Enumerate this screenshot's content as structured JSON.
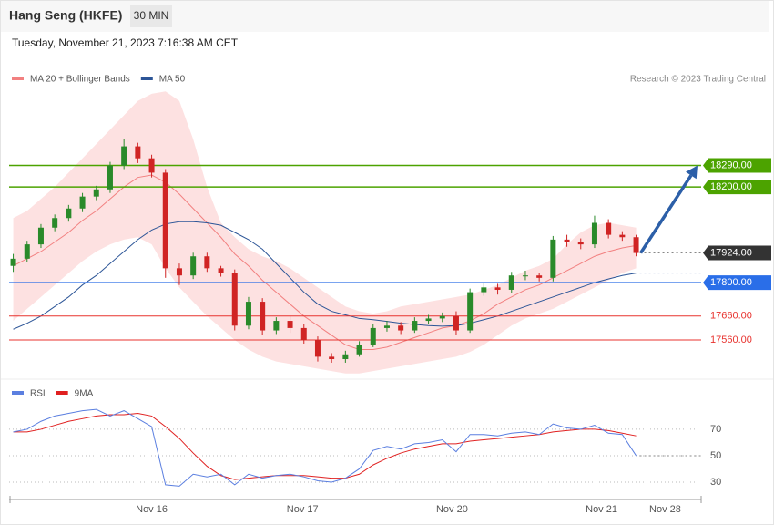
{
  "header": {
    "title": "Hang Seng (HKFE)",
    "timeframe": "30 MIN",
    "timestamp": "Tuesday, November 21, 2023 7:16:38 AM CET"
  },
  "chart_data": [
    {
      "type": "candlestick",
      "credit": "Research © 2023 Trading Central",
      "up_color": "#2a8a2a",
      "down_color": "#d02424",
      "open": [
        17870,
        17900,
        17960,
        18030,
        18070,
        18110,
        18160,
        18190,
        18290,
        18370,
        18320,
        18260,
        17860,
        17830,
        17910,
        17860,
        17840,
        17620,
        17720,
        17600,
        17640,
        17610,
        17560,
        17490,
        17480,
        17500,
        17540,
        17610,
        17620,
        17600,
        17640,
        17650,
        17660,
        17600,
        17760,
        17780,
        17770,
        17830,
        17830,
        17820,
        17980,
        17970,
        17960,
        18050,
        18000,
        17990
      ],
      "high": [
        17920,
        17975,
        18045,
        18085,
        18125,
        18175,
        18205,
        18305,
        18400,
        18385,
        18335,
        18275,
        17880,
        17925,
        17925,
        17870,
        17855,
        17740,
        17735,
        17655,
        17660,
        17625,
        17575,
        17505,
        17515,
        17555,
        17625,
        17640,
        17635,
        17655,
        17665,
        17675,
        17680,
        17775,
        17800,
        17795,
        17845,
        17850,
        17840,
        17995,
        18000,
        17985,
        18080,
        18065,
        18015,
        18000
      ],
      "low": [
        17845,
        17885,
        17945,
        18015,
        18055,
        18095,
        18145,
        18175,
        18275,
        18300,
        18240,
        17820,
        17790,
        17815,
        17845,
        17825,
        17600,
        17605,
        17580,
        17585,
        17590,
        17545,
        17470,
        17465,
        17465,
        17490,
        17530,
        17595,
        17585,
        17590,
        17625,
        17635,
        17580,
        17590,
        17745,
        17750,
        17755,
        17810,
        17805,
        17805,
        17950,
        17940,
        17945,
        17985,
        17975,
        17910
      ],
      "close": [
        17900,
        17960,
        18030,
        18070,
        18110,
        18160,
        18190,
        18290,
        18370,
        18320,
        18260,
        17860,
        17830,
        17910,
        17860,
        17840,
        17620,
        17720,
        17600,
        17640,
        17610,
        17560,
        17490,
        17480,
        17500,
        17540,
        17610,
        17620,
        17600,
        17640,
        17650,
        17660,
        17600,
        17760,
        17780,
        17770,
        17830,
        17830,
        17820,
        17980,
        17970,
        17960,
        18050,
        18000,
        17990,
        17924
      ],
      "series": [
        {
          "name": "MA 20 + Bollinger Bands",
          "color": "#f28080",
          "band_color": "#fde1e1",
          "values": [
            17870,
            17900,
            17930,
            17970,
            18010,
            18060,
            18100,
            18150,
            18200,
            18240,
            18250,
            18220,
            18170,
            18110,
            18050,
            17990,
            17920,
            17870,
            17810,
            17760,
            17710,
            17660,
            17620,
            17580,
            17540,
            17520,
            17520,
            17530,
            17550,
            17570,
            17590,
            17610,
            17620,
            17640,
            17670,
            17710,
            17740,
            17770,
            17790,
            17820,
            17850,
            17880,
            17910,
            17930,
            17945,
            17955
          ],
          "upper": [
            18070,
            18100,
            18150,
            18200,
            18260,
            18320,
            18380,
            18440,
            18500,
            18560,
            18590,
            18600,
            18560,
            18400,
            18200,
            18050,
            17990,
            17940,
            17910,
            17890,
            17860,
            17820,
            17780,
            17740,
            17700,
            17680,
            17670,
            17680,
            17700,
            17710,
            17720,
            17730,
            17740,
            17750,
            17770,
            17790,
            17820,
            17850,
            17870,
            17900,
            17960,
            18010,
            18040,
            18050,
            18040,
            18030
          ],
          "lower": [
            17640,
            17690,
            17740,
            17790,
            17840,
            17890,
            17930,
            17960,
            17980,
            17990,
            17960,
            17860,
            17780,
            17720,
            17660,
            17610,
            17560,
            17520,
            17490,
            17470,
            17460,
            17450,
            17440,
            17430,
            17420,
            17420,
            17430,
            17440,
            17450,
            17460,
            17470,
            17480,
            17490,
            17510,
            17540,
            17580,
            17620,
            17650,
            17670,
            17690,
            17720,
            17750,
            17780,
            17810,
            17840,
            17860
          ]
        },
        {
          "name": "MA 50",
          "color": "#2c5597",
          "values": [
            17605,
            17630,
            17660,
            17700,
            17740,
            17790,
            17830,
            17880,
            17930,
            17980,
            18020,
            18045,
            18055,
            18055,
            18050,
            18040,
            18010,
            17980,
            17940,
            17880,
            17820,
            17760,
            17710,
            17680,
            17665,
            17650,
            17645,
            17638,
            17630,
            17625,
            17620,
            17618,
            17620,
            17630,
            17645,
            17660,
            17680,
            17700,
            17720,
            17740,
            17760,
            17780,
            17800,
            17815,
            17830,
            17840
          ]
        }
      ],
      "levels": [
        {
          "value": 18290,
          "label": "18290.00",
          "color": "#4ca300",
          "boxed": true
        },
        {
          "value": 18200,
          "label": "18200.00",
          "color": "#4ca300",
          "boxed": true
        },
        {
          "value": 17924,
          "label": "17924.00",
          "color": "#333333",
          "boxed": true
        },
        {
          "value": 17800,
          "label": "17800.00",
          "color": "#2a6ee8",
          "boxed": true
        },
        {
          "value": 17660,
          "label": "17660.00",
          "color": "#e8332f",
          "boxed": false
        },
        {
          "value": 17560,
          "label": "17560.00",
          "color": "#e8332f",
          "boxed": false
        }
      ],
      "xlim": [
        -0.3,
        49.7
      ],
      "ylim": [
        17400,
        18620
      ]
    },
    {
      "type": "line",
      "series": [
        {
          "name": "RSI",
          "color": "#5b7fe0",
          "values": [
            68,
            70,
            76,
            80,
            82,
            84,
            85,
            80,
            84,
            78,
            72,
            28,
            27,
            36,
            34,
            36,
            28,
            36,
            33,
            35,
            36,
            34,
            31,
            30,
            33,
            40,
            54,
            57,
            55,
            59,
            60,
            62,
            53,
            66,
            66,
            65,
            67,
            68,
            66,
            74,
            71,
            70,
            73,
            67,
            66,
            50
          ]
        },
        {
          "name": "9MA",
          "color": "#e02020",
          "values": [
            68,
            68,
            70,
            73,
            76,
            78,
            80,
            81,
            81,
            82,
            80,
            72,
            63,
            52,
            42,
            35,
            32,
            33,
            34,
            35,
            35,
            35,
            34,
            33,
            33,
            36,
            43,
            48,
            52,
            55,
            57,
            59,
            59,
            61,
            62,
            63,
            64,
            65,
            66,
            68,
            69,
            70,
            70,
            69,
            67,
            65
          ]
        }
      ],
      "yticks": [
        70,
        50,
        30
      ],
      "ylim": [
        20,
        92
      ],
      "xlim": [
        -0.3,
        49.7
      ],
      "xticks": [
        {
          "value": 10,
          "label": "Nov 16"
        },
        {
          "value": 20.9,
          "label": "Nov 17"
        },
        {
          "value": 31.7,
          "label": "Nov 20"
        },
        {
          "value": 42.5,
          "label": "Nov 21"
        },
        {
          "value": 47.1,
          "label": "Nov 28"
        }
      ]
    }
  ]
}
